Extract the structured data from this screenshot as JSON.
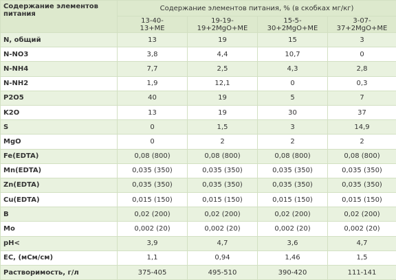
{
  "table": {
    "header": {
      "label": "Содержание элементов питания",
      "group": "Содержание элементов питания, % (в скобках мг/кг)",
      "columns": [
        [
          "13-40-",
          "13+ME"
        ],
        [
          "19-19-",
          "19+2MgO+ME"
        ],
        [
          "15-5-",
          "30+2MgO+ME"
        ],
        [
          "3-07-",
          "37+2MgO+ME"
        ]
      ]
    },
    "rows": [
      [
        "N, общий",
        "13",
        "19",
        "15",
        "3"
      ],
      [
        "N-NO3",
        "3,8",
        "4,4",
        "10,7",
        "0"
      ],
      [
        "N-NH4",
        "7,7",
        "2,5",
        "4,3",
        "2,8"
      ],
      [
        "N-NH2",
        "1,9",
        "12,1",
        "0",
        "0,3"
      ],
      [
        "P2O5",
        "40",
        "19",
        "5",
        "7"
      ],
      [
        "K2O",
        "13",
        "19",
        "30",
        "37"
      ],
      [
        "S",
        "0",
        "1,5",
        "3",
        "14,9"
      ],
      [
        "MgO",
        "0",
        "2",
        "2",
        "2"
      ],
      [
        "Fe(EDTA)",
        "0,08 (800)",
        "0,08 (800)",
        "0,08 (800)",
        "0,08 (800)"
      ],
      [
        "Mn(EDTA)",
        "0,035 (350)",
        "0,035 (350)",
        "0,035 (350)",
        "0,035 (350)"
      ],
      [
        "Zn(EDTA)",
        "0,035 (350)",
        "0,035 (350)",
        "0,035 (350)",
        "0,035 (350)"
      ],
      [
        "Cu(EDTA)",
        "0,015 (150)",
        "0,015 (150)",
        "0,015 (150)",
        "0,015 (150)"
      ],
      [
        "B",
        "0,02 (200)",
        "0,02 (200)",
        "0,02 (200)",
        "0,02 (200)"
      ],
      [
        "Mo",
        "0,002 (20)",
        "0,002 (20)",
        "0,002 (20)",
        "0,002 (20)"
      ],
      [
        "pH<",
        "3,9",
        "4,7",
        "3,6",
        "4,7"
      ],
      [
        "EC, (мСм/см)",
        "1,1",
        "0,94",
        "1,46",
        "1,5"
      ],
      [
        "Растворимость, г/л",
        "375-405",
        "495-510",
        "390-420",
        "111-141"
      ]
    ]
  }
}
